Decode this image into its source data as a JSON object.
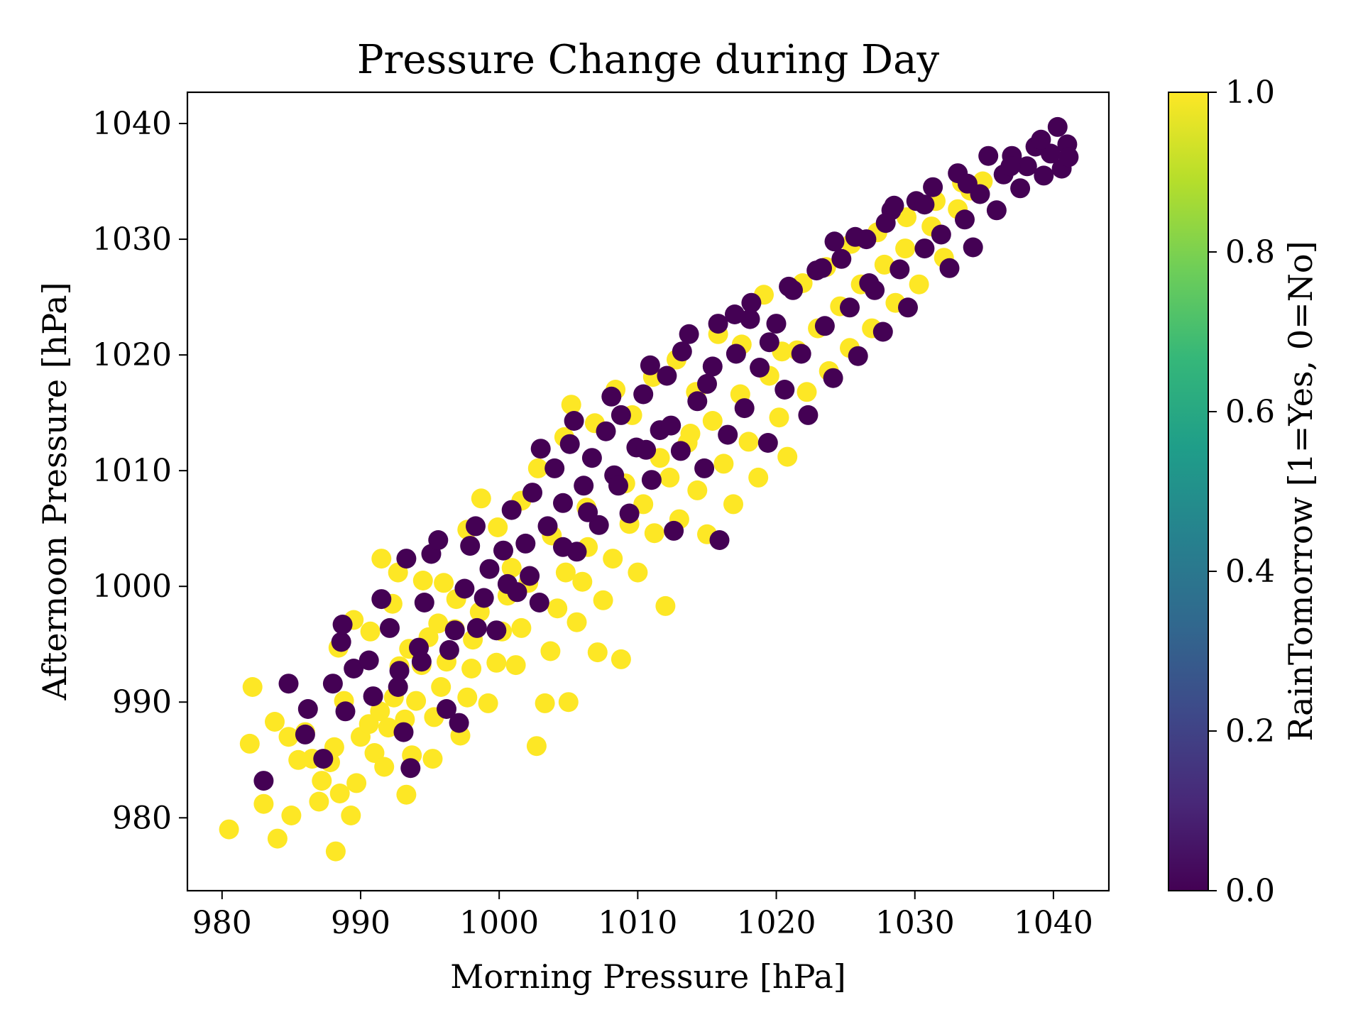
{
  "chart_data": {
    "type": "scatter",
    "title": "Pressure Change during Day",
    "xlabel": "Morning Pressure [hPa]",
    "ylabel": "Afternoon Pressure [hPa]",
    "xlim": [
      977.5,
      1044
    ],
    "ylim": [
      973.7,
      1042.7
    ],
    "xticks": [
      980,
      990,
      1000,
      1010,
      1020,
      1030,
      1040
    ],
    "yticks": [
      980,
      990,
      1000,
      1010,
      1020,
      1030,
      1040
    ],
    "grid": false,
    "colorbar": {
      "label": "RainTomorrow [1=Yes, 0=No]",
      "colormap": "viridis",
      "range": [
        0.0,
        1.0
      ],
      "ticks": [
        "0.0",
        "0.2",
        "0.4",
        "0.6",
        "0.8",
        "1.0"
      ],
      "stops": [
        "#440154",
        "#482878",
        "#3e4989",
        "#31688e",
        "#26828e",
        "#1f9e89",
        "#35b779",
        "#6ece58",
        "#b5de2b",
        "#fde725"
      ]
    },
    "series": [
      {
        "color": "#fde725",
        "values_value": 1.0,
        "points": [
          [
            980.5,
            979
          ],
          [
            982.2,
            991.3
          ],
          [
            982,
            986.4
          ],
          [
            983,
            981.2
          ],
          [
            984,
            978.2
          ],
          [
            983.8,
            988.3
          ],
          [
            985,
            980.2
          ],
          [
            985.5,
            985
          ],
          [
            984.8,
            987
          ],
          [
            986,
            987.4
          ],
          [
            986.5,
            985.1
          ],
          [
            987,
            981.4
          ],
          [
            987.2,
            983.2
          ],
          [
            987.8,
            984.8
          ],
          [
            988.2,
            977.1
          ],
          [
            988.5,
            982.1
          ],
          [
            988.1,
            986.1
          ],
          [
            988.8,
            990.1
          ],
          [
            989.3,
            980.2
          ],
          [
            989.7,
            983
          ],
          [
            990,
            987
          ],
          [
            990.6,
            988.1
          ],
          [
            991,
            985.6
          ],
          [
            991.4,
            989.2
          ],
          [
            991.7,
            984.4
          ],
          [
            992,
            987.8
          ],
          [
            992.4,
            990.4
          ],
          [
            992.8,
            993.1
          ],
          [
            993.3,
            982
          ],
          [
            993.7,
            985.4
          ],
          [
            993.2,
            988.5
          ],
          [
            994,
            990.1
          ],
          [
            994.4,
            993.2
          ],
          [
            994.9,
            995.6
          ],
          [
            995.2,
            985.1
          ],
          [
            995.3,
            988.7
          ],
          [
            995.8,
            991.3
          ],
          [
            996.2,
            993.5
          ],
          [
            996.8,
            996.3
          ],
          [
            997.2,
            987.1
          ],
          [
            997.7,
            990.4
          ],
          [
            998,
            992.9
          ],
          [
            998.1,
            995.4
          ],
          [
            998.6,
            997.8
          ],
          [
            999.2,
            989.9
          ],
          [
            999.8,
            993.4
          ],
          [
            1000.2,
            996.1
          ],
          [
            1000.6,
            999.2
          ],
          [
            1001.2,
            993.2
          ],
          [
            1001.6,
            996.4
          ],
          [
            1002.1,
            1000.3
          ],
          [
            1002.7,
            986.2
          ],
          [
            1003.3,
            989.9
          ],
          [
            1003.7,
            994.4
          ],
          [
            1004.2,
            998.1
          ],
          [
            1004.8,
            1001.2
          ],
          [
            1005,
            990
          ],
          [
            1005.6,
            996.9
          ],
          [
            1006,
            1000.4
          ],
          [
            1006.4,
            1003.4
          ],
          [
            1007.1,
            994.3
          ],
          [
            1007.5,
            998.8
          ],
          [
            1008.2,
            1002.4
          ],
          [
            1008.8,
            993.7
          ],
          [
            1009.4,
            1005.4
          ],
          [
            1010,
            1001.2
          ],
          [
            1010.4,
            1007.1
          ],
          [
            1011.2,
            1004.6
          ],
          [
            1012,
            998.3
          ],
          [
            1012.3,
            1009.4
          ],
          [
            1013,
            1005.8
          ],
          [
            1013.6,
            1012.4
          ],
          [
            1014.3,
            1008.3
          ],
          [
            1015,
            1004.5
          ],
          [
            1015.4,
            1014.3
          ],
          [
            1016.2,
            1010.6
          ],
          [
            1016.9,
            1007.1
          ],
          [
            1017.4,
            1016.6
          ],
          [
            1018,
            1012.5
          ],
          [
            1018.7,
            1009.4
          ],
          [
            1019.5,
            1018.2
          ],
          [
            1020.2,
            1014.6
          ],
          [
            1020.8,
            1011.2
          ],
          [
            1021.5,
            1020.4
          ],
          [
            1022.2,
            1016.8
          ],
          [
            1023,
            1022.3
          ],
          [
            1023.8,
            1018.6
          ],
          [
            1024.6,
            1024.2
          ],
          [
            1025.3,
            1020.6
          ],
          [
            1026.1,
            1026.1
          ],
          [
            1026.9,
            1022.3
          ],
          [
            1027.8,
            1027.8
          ],
          [
            1028.6,
            1024.5
          ],
          [
            1029.3,
            1029.2
          ],
          [
            1030.3,
            1026.1
          ],
          [
            1031.2,
            1031.1
          ],
          [
            1032.1,
            1028.4
          ],
          [
            1033.1,
            1032.6
          ],
          [
            1034,
            1034.2
          ],
          [
            1034.9,
            1035
          ],
          [
            989.5,
            997.1
          ],
          [
            988.4,
            994.7
          ],
          [
            990.7,
            996.1
          ],
          [
            992.7,
            1001.2
          ],
          [
            992.3,
            998.5
          ],
          [
            991.5,
            1002.4
          ],
          [
            994.5,
            1000.5
          ],
          [
            996,
            1000.3
          ],
          [
            997.7,
            1004.9
          ],
          [
            998.7,
            1007.6
          ],
          [
            999.9,
            1005.1
          ],
          [
            1001.6,
            1007.4
          ],
          [
            1002.8,
            1010.2
          ],
          [
            1004.7,
            1012.9
          ],
          [
            1005.2,
            1015.7
          ],
          [
            1006.9,
            1014.1
          ],
          [
            1008.4,
            1017
          ],
          [
            1009.6,
            1014.8
          ],
          [
            1011.1,
            1018.1
          ],
          [
            1012.8,
            1019.6
          ],
          [
            1014.2,
            1016.8
          ],
          [
            1015.8,
            1021.8
          ],
          [
            1017.5,
            1020.9
          ],
          [
            1019.1,
            1025.2
          ],
          [
            1020.4,
            1020.3
          ],
          [
            1021.9,
            1026.2
          ],
          [
            1023.6,
            1027.6
          ],
          [
            1025.4,
            1029.6
          ],
          [
            1027.3,
            1030.6
          ],
          [
            1029.4,
            1031.9
          ],
          [
            1031.5,
            1033.3
          ],
          [
            1033.4,
            1034.9
          ],
          [
            996.9,
            998.9
          ],
          [
            995.6,
            996.8
          ],
          [
            993.5,
            994.6
          ],
          [
            1000.9,
            1001.6
          ],
          [
            1003.8,
            1004.4
          ],
          [
            1006.3,
            1006.8
          ],
          [
            1009.1,
            1008.9
          ],
          [
            1011.6,
            1011.1
          ],
          [
            1013.8,
            1013.2
          ]
        ]
      },
      {
        "color": "#440154",
        "values_value": 0.0,
        "points": [
          [
            983,
            983.2
          ],
          [
            984.8,
            991.6
          ],
          [
            986.2,
            989.4
          ],
          [
            986,
            987.2
          ],
          [
            987.3,
            985.1
          ],
          [
            988,
            991.6
          ],
          [
            988.6,
            995.2
          ],
          [
            988.7,
            996.7
          ],
          [
            988.9,
            989.2
          ],
          [
            989.5,
            992.9
          ],
          [
            990.6,
            993.6
          ],
          [
            991.5,
            998.9
          ],
          [
            992.1,
            996.4
          ],
          [
            992.7,
            991.3
          ],
          [
            993.1,
            987.4
          ],
          [
            993.3,
            1002.4
          ],
          [
            993.6,
            984.3
          ],
          [
            994.2,
            994.7
          ],
          [
            994.6,
            998.6
          ],
          [
            995.1,
            1002.8
          ],
          [
            995.6,
            1004
          ],
          [
            996.2,
            989.4
          ],
          [
            996.8,
            996.2
          ],
          [
            997.1,
            988.2
          ],
          [
            997.5,
            999.8
          ],
          [
            997.9,
            1003.5
          ],
          [
            998.3,
            1005.2
          ],
          [
            998.9,
            999
          ],
          [
            999.3,
            1001.5
          ],
          [
            999.8,
            996.2
          ],
          [
            1000.3,
            1003.1
          ],
          [
            1000.9,
            1006.6
          ],
          [
            1001.3,
            999.5
          ],
          [
            1001.9,
            1003.7
          ],
          [
            1002.4,
            1008.1
          ],
          [
            1002.9,
            998.6
          ],
          [
            1003.5,
            1005.2
          ],
          [
            1004,
            1010.2
          ],
          [
            1004.6,
            1007.2
          ],
          [
            1005.1,
            1012.3
          ],
          [
            1005.6,
            1003
          ],
          [
            1006.1,
            1008.7
          ],
          [
            1006.7,
            1011.1
          ],
          [
            1007.2,
            1005.3
          ],
          [
            1007.7,
            1013.4
          ],
          [
            1008.3,
            1009.6
          ],
          [
            1008.8,
            1014.8
          ],
          [
            1009.4,
            1006.3
          ],
          [
            1009.9,
            1012
          ],
          [
            1010.4,
            1016.6
          ],
          [
            1011,
            1009.2
          ],
          [
            1011.6,
            1013.5
          ],
          [
            1012.1,
            1018.2
          ],
          [
            1012.6,
            1004.8
          ],
          [
            1013.1,
            1011.7
          ],
          [
            1013.7,
            1021.8
          ],
          [
            1014.3,
            1016
          ],
          [
            1014.8,
            1010.2
          ],
          [
            1015.4,
            1019
          ],
          [
            1015.9,
            1004
          ],
          [
            1016.5,
            1013.1
          ],
          [
            1017.1,
            1020.1
          ],
          [
            1017.7,
            1015.4
          ],
          [
            1018.2,
            1024.5
          ],
          [
            1018.8,
            1018.9
          ],
          [
            1019.4,
            1012.4
          ],
          [
            1020,
            1022.7
          ],
          [
            1020.6,
            1017
          ],
          [
            1021.2,
            1025.6
          ],
          [
            1021.8,
            1020.1
          ],
          [
            1022.3,
            1014.8
          ],
          [
            1022.9,
            1027.3
          ],
          [
            1023.5,
            1022.5
          ],
          [
            1024.1,
            1018
          ],
          [
            1024.7,
            1028.3
          ],
          [
            1025.3,
            1024.1
          ],
          [
            1025.9,
            1019.9
          ],
          [
            1026.5,
            1030
          ],
          [
            1027.1,
            1025.6
          ],
          [
            1027.7,
            1022
          ],
          [
            1028.3,
            1032.5
          ],
          [
            1028.9,
            1027.4
          ],
          [
            1029.5,
            1024.1
          ],
          [
            1030.1,
            1033.3
          ],
          [
            1030.7,
            1029.2
          ],
          [
            1031.3,
            1034.5
          ],
          [
            1031.9,
            1030.4
          ],
          [
            1032.5,
            1027.5
          ],
          [
            1033.1,
            1035.7
          ],
          [
            1033.6,
            1031.7
          ],
          [
            1034.2,
            1029.3
          ],
          [
            1034.7,
            1033.9
          ],
          [
            1035.3,
            1037.2
          ],
          [
            1035.9,
            1032.5
          ],
          [
            1036.4,
            1035.6
          ],
          [
            1037,
            1037.2
          ],
          [
            1037.6,
            1034.4
          ],
          [
            1038.1,
            1036.3
          ],
          [
            1038.7,
            1038
          ],
          [
            1039.3,
            1035.5
          ],
          [
            1039.8,
            1037.4
          ],
          [
            1040.3,
            1039.7
          ],
          [
            1040.6,
            1036.1
          ],
          [
            1041,
            1038.2
          ],
          [
            1041.1,
            1037.1
          ],
          [
            1026.7,
            1026.2
          ],
          [
            1024.2,
            1029.8
          ],
          [
            1028.5,
            1032.9
          ],
          [
            1019.5,
            1021.1
          ],
          [
            1017,
            1023.5
          ],
          [
            1015,
            1017.5
          ],
          [
            1012.4,
            1013.9
          ],
          [
            1010.6,
            1011.8
          ],
          [
            1008.6,
            1008.7
          ],
          [
            1006.4,
            1006.4
          ],
          [
            1004.6,
            1003.4
          ],
          [
            1002.2,
            1000.9
          ],
          [
            1000.6,
            1000.2
          ],
          [
            998.4,
            996.4
          ],
          [
            996.4,
            994.5
          ],
          [
            994.4,
            993.5
          ],
          [
            992.8,
            992.7
          ],
          [
            990.9,
            990.5
          ],
          [
            1003,
            1011.9
          ],
          [
            1005.4,
            1014.3
          ],
          [
            1008.1,
            1016.4
          ],
          [
            1010.9,
            1019.1
          ],
          [
            1013.2,
            1020.3
          ],
          [
            1015.8,
            1022.7
          ],
          [
            1018.1,
            1023.1
          ],
          [
            1020.9,
            1025.9
          ],
          [
            1023.3,
            1027.5
          ],
          [
            1025.7,
            1030.2
          ],
          [
            1027.9,
            1031.4
          ],
          [
            1030.7,
            1033
          ],
          [
            1033.8,
            1034.8
          ],
          [
            1036.9,
            1036.3
          ],
          [
            1039.1,
            1038.6
          ]
        ]
      }
    ]
  }
}
